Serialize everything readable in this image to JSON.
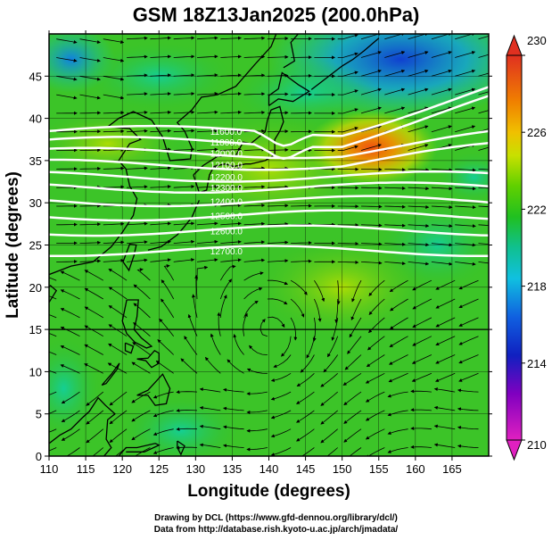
{
  "title": "GSM 18Z13Jan2025 (200.0hPa)",
  "credits": {
    "line1": "Drawing by DCL (https://www.gfd-dennou.org/library/dcl/)",
    "line2": "Data from http://database.rish.kyoto-u.ac.jp/arch/jmadata/"
  },
  "chart_data": {
    "type": "heatmap",
    "xlabel": "Longitude (degrees)",
    "ylabel": "Latitude  (degrees)",
    "xlim": [
      110,
      170
    ],
    "ylim": [
      0,
      50
    ],
    "x_ticks": [
      110,
      115,
      120,
      125,
      130,
      135,
      140,
      145,
      150,
      155,
      160,
      165
    ],
    "y_ticks": [
      0,
      5,
      10,
      15,
      20,
      25,
      30,
      35,
      40,
      45
    ],
    "grid": true,
    "colorbar": {
      "position": "right",
      "min": 210,
      "max": 230,
      "tick_values": [
        210,
        214,
        218,
        222,
        226,
        230
      ]
    },
    "contour_labels": [
      {
        "lon": 132,
        "lat": 38.5,
        "text": "11600.0"
      },
      {
        "lon": 132,
        "lat": 37.2,
        "text": "11800.0"
      },
      {
        "lon": 132,
        "lat": 35.9,
        "text": "12000.0"
      },
      {
        "lon": 132,
        "lat": 34.5,
        "text": "12100.0"
      },
      {
        "lon": 132,
        "lat": 33.1,
        "text": "12200.0"
      },
      {
        "lon": 132,
        "lat": 31.8,
        "text": "12300.0"
      },
      {
        "lon": 132,
        "lat": 30.2,
        "text": "12400.0"
      },
      {
        "lon": 132,
        "lat": 28.5,
        "text": "12500.0"
      },
      {
        "lon": 132,
        "lat": 26.7,
        "text": "12600.0"
      },
      {
        "lon": 132,
        "lat": 24.3,
        "text": "12700.0"
      }
    ]
  }
}
